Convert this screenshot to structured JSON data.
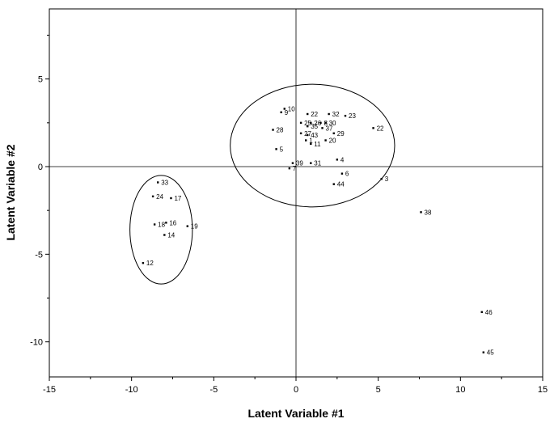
{
  "chart_data": {
    "type": "scatter",
    "title": "",
    "xlabel": "Latent Variable #1",
    "ylabel": "Latent Variable #2",
    "xlim": [
      -15,
      15
    ],
    "ylim": [
      -12,
      9
    ],
    "xticks": [
      -15,
      -10,
      -5,
      0,
      5,
      10,
      15
    ],
    "yticks": [
      -10,
      -5,
      0,
      5
    ],
    "reference_lines": {
      "x": 0,
      "y": 0
    },
    "grid": false,
    "points": [
      {
        "label": "10",
        "x": -0.7,
        "y": 3.3
      },
      {
        "label": "9",
        "x": -0.9,
        "y": 3.1
      },
      {
        "label": "22",
        "x": 0.7,
        "y": 3.0
      },
      {
        "label": "32",
        "x": 2.0,
        "y": 3.0
      },
      {
        "label": "25",
        "x": 0.3,
        "y": 2.5
      },
      {
        "label": "26",
        "x": 0.9,
        "y": 2.5
      },
      {
        "label": "8",
        "x": 1.5,
        "y": 2.5
      },
      {
        "label": "30",
        "x": 1.8,
        "y": 2.5
      },
      {
        "label": "23",
        "x": 3.0,
        "y": 2.9
      },
      {
        "label": "22",
        "x": 4.7,
        "y": 2.2
      },
      {
        "label": "35",
        "x": 0.7,
        "y": 2.3
      },
      {
        "label": "37",
        "x": 1.6,
        "y": 2.2
      },
      {
        "label": "28",
        "x": -1.4,
        "y": 2.1
      },
      {
        "label": "27",
        "x": 0.3,
        "y": 1.9
      },
      {
        "label": "43",
        "x": 0.7,
        "y": 1.8
      },
      {
        "label": "29",
        "x": 2.3,
        "y": 1.9
      },
      {
        "label": "1",
        "x": 0.6,
        "y": 1.5
      },
      {
        "label": "20",
        "x": 1.8,
        "y": 1.5
      },
      {
        "label": "11",
        "x": 0.9,
        "y": 1.3
      },
      {
        "label": "5",
        "x": -1.2,
        "y": 1.0
      },
      {
        "label": "4",
        "x": 2.5,
        "y": 0.4
      },
      {
        "label": "39",
        "x": -0.2,
        "y": 0.2
      },
      {
        "label": "31",
        "x": 0.9,
        "y": 0.2
      },
      {
        "label": "7",
        "x": -0.4,
        "y": -0.1
      },
      {
        "label": "6",
        "x": 2.8,
        "y": -0.4
      },
      {
        "label": "44",
        "x": 2.3,
        "y": -1.0
      },
      {
        "label": "3",
        "x": 5.2,
        "y": -0.7
      },
      {
        "label": "38",
        "x": 7.6,
        "y": -2.6
      },
      {
        "label": "33",
        "x": -8.4,
        "y": -0.9
      },
      {
        "label": "24",
        "x": -8.7,
        "y": -1.7
      },
      {
        "label": "17",
        "x": -7.6,
        "y": -1.8
      },
      {
        "label": "18",
        "x": -8.6,
        "y": -3.3
      },
      {
        "label": "16",
        "x": -7.9,
        "y": -3.2
      },
      {
        "label": "19",
        "x": -6.6,
        "y": -3.4
      },
      {
        "label": "14",
        "x": -8.0,
        "y": -3.9
      },
      {
        "label": "12",
        "x": -9.3,
        "y": -5.5
      },
      {
        "label": "46",
        "x": 11.3,
        "y": -8.3
      },
      {
        "label": "45",
        "x": 11.4,
        "y": -10.6
      }
    ],
    "clusters": [
      {
        "cx": 1.0,
        "cy": 1.2,
        "rx": 5.0,
        "ry": 3.5
      },
      {
        "cx": -8.2,
        "cy": -3.6,
        "rx": 1.9,
        "ry": 3.1
      }
    ]
  }
}
